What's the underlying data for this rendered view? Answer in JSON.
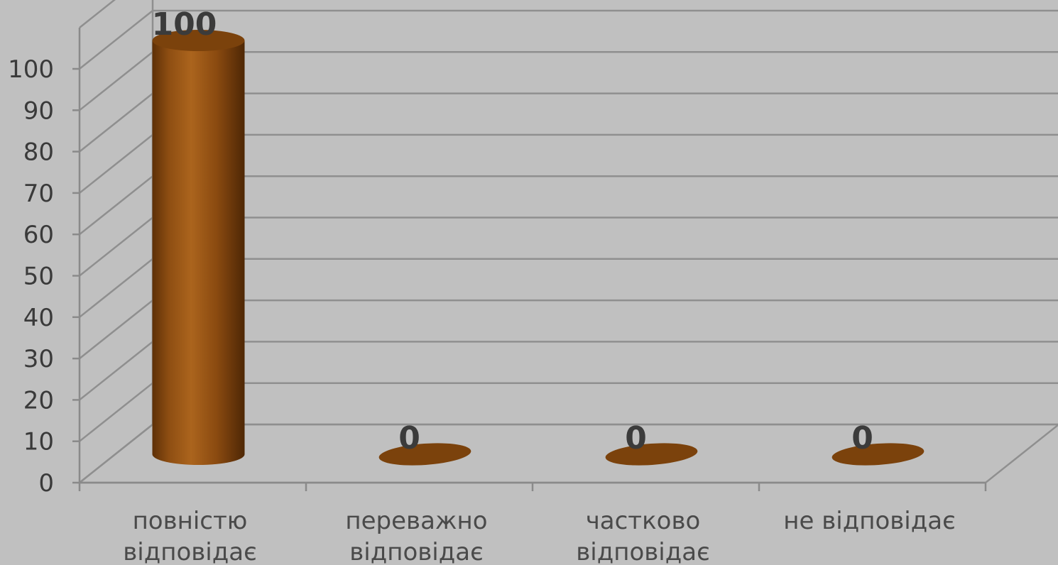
{
  "chart_data": {
    "type": "bar",
    "style": "3d-cylinder",
    "categories": [
      [
        "повністю",
        "відповідає"
      ],
      [
        "переважно",
        "відповідає"
      ],
      [
        "частково",
        "відповідає"
      ],
      [
        "не відповідає"
      ]
    ],
    "values": [
      100,
      0,
      0,
      0
    ],
    "data_labels": [
      "100",
      "0",
      "0",
      "0"
    ],
    "title": "",
    "xlabel": "",
    "ylabel": "",
    "ylim": [
      0,
      100
    ],
    "yticks": [
      "0",
      "10",
      "20",
      "30",
      "40",
      "50",
      "60",
      "70",
      "80",
      "90",
      "100"
    ],
    "grid": true,
    "legend": "none",
    "colors": {
      "bar_light": "#a9621c",
      "bar_mid": "#8f4f12",
      "bar_dark": "#5a2e07",
      "bar_top": "#7b420c",
      "background": "#c0c0c0",
      "grid": "#8f8f8f",
      "text": "#3a3a3a"
    }
  }
}
